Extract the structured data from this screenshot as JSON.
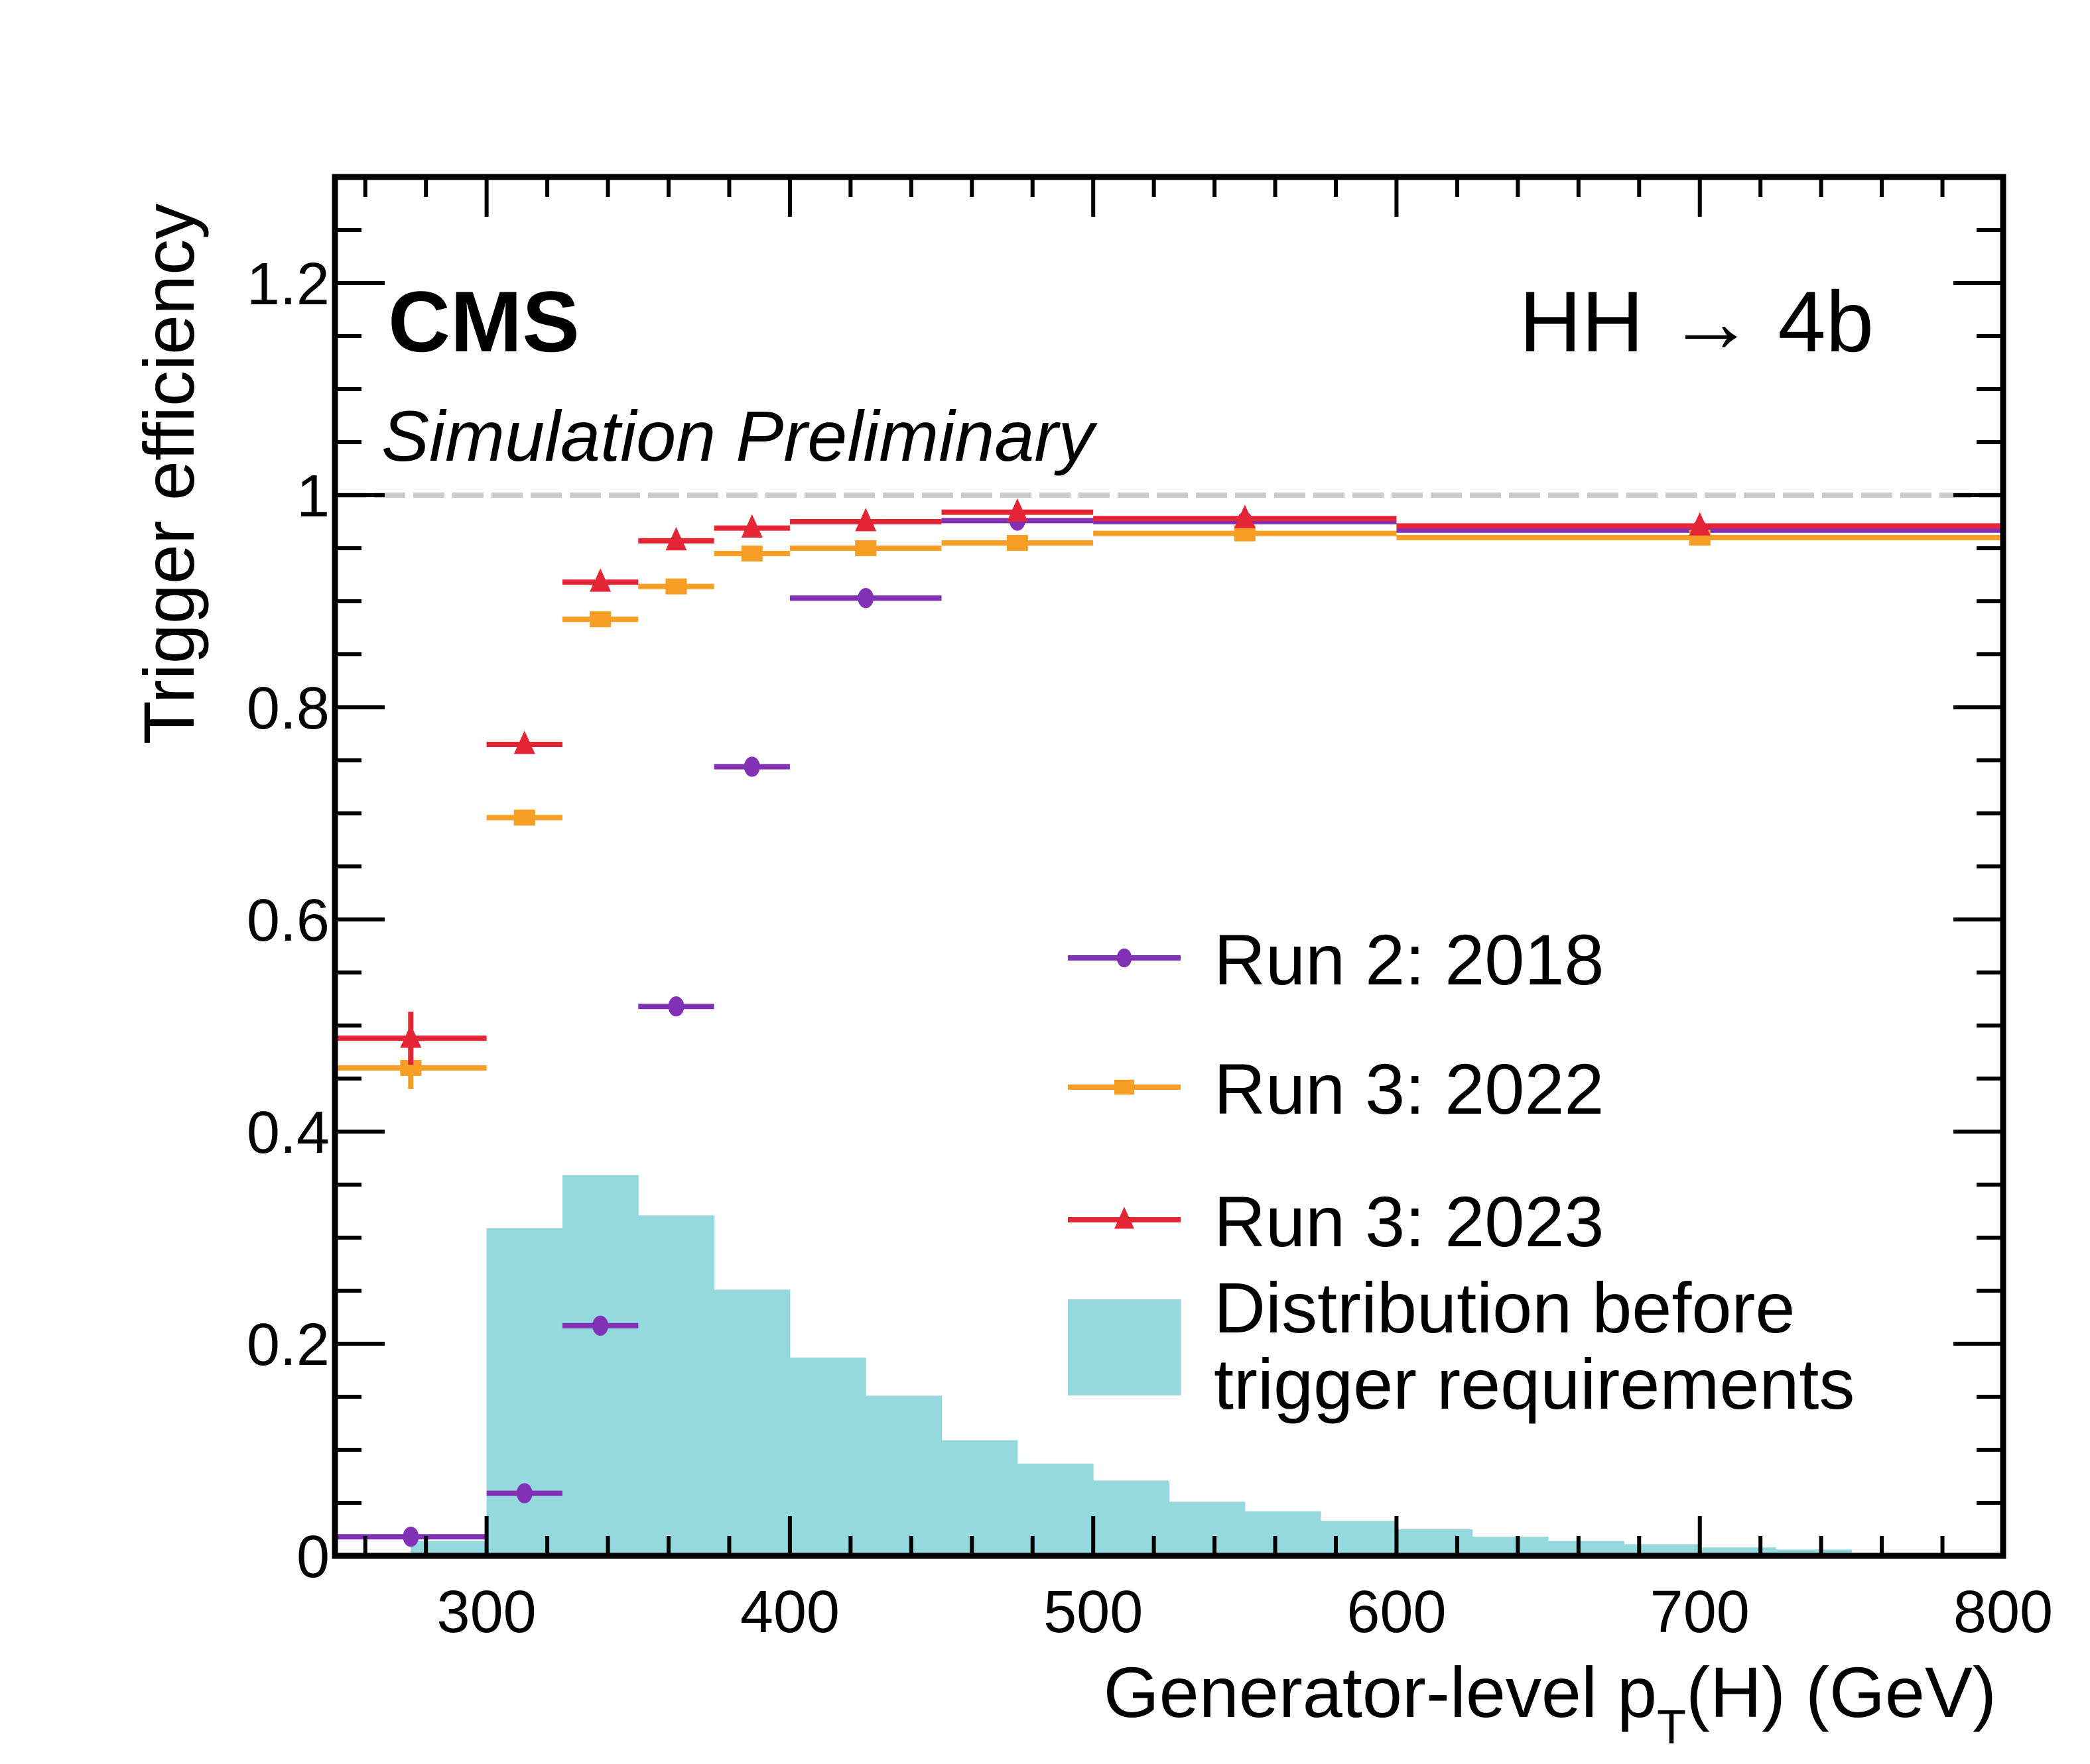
{
  "chart_data": {
    "type": "scatter",
    "title": "",
    "experiment_label": "CMS",
    "experiment_sublabel": "Simulation Preliminary",
    "process_label": "HH → 4b",
    "xlabel": "Generator-level p_T(H) (GeV)",
    "xlabel_parts": {
      "pre": "Generator-level p",
      "sub": "T",
      "post": "(H) (GeV)"
    },
    "ylabel": "Trigger efficiency",
    "xlim": [
      250,
      800
    ],
    "ylim": [
      0,
      1.3
    ],
    "x_ticks": [
      300,
      400,
      500,
      600,
      700,
      800
    ],
    "x_tick_labels": [
      "300",
      "400",
      "500",
      "600",
      "700",
      "800"
    ],
    "y_ticks": [
      0,
      0.2,
      0.4,
      0.6,
      0.8,
      1,
      1.2
    ],
    "y_tick_labels": [
      "0",
      "0.2",
      "0.4",
      "0.6",
      "0.8",
      "1",
      "1.2"
    ],
    "reference_line": {
      "y": 1.0,
      "style": "dashed",
      "color": "#cccccc"
    },
    "grid": false,
    "legend_position": "center-right",
    "series": [
      {
        "name": "Run 2: 2018",
        "marker": "circle",
        "color": "#8230b5",
        "bins": [
          [
            250,
            300
          ],
          [
            300,
            325
          ],
          [
            325,
            350
          ],
          [
            350,
            375
          ],
          [
            375,
            400
          ],
          [
            400,
            450
          ],
          [
            450,
            500
          ],
          [
            500,
            600
          ],
          [
            600,
            800
          ]
        ],
        "x": [
          275,
          312.5,
          337.5,
          362.5,
          387.5,
          425,
          475,
          550,
          700
        ],
        "values": [
          0.018,
          0.059,
          0.217,
          0.518,
          0.744,
          0.903,
          0.976,
          0.975,
          0.967
        ],
        "yerr": [
          0,
          0,
          0,
          0,
          0,
          0,
          0,
          0,
          0
        ]
      },
      {
        "name": "Run 3: 2022",
        "marker": "square",
        "color": "#f79e24",
        "bins": [
          [
            250,
            300
          ],
          [
            300,
            325
          ],
          [
            325,
            350
          ],
          [
            350,
            375
          ],
          [
            375,
            400
          ],
          [
            400,
            450
          ],
          [
            450,
            500
          ],
          [
            500,
            600
          ],
          [
            600,
            800
          ]
        ],
        "x": [
          275,
          312.5,
          337.5,
          362.5,
          387.5,
          425,
          475,
          550,
          700
        ],
        "values": [
          0.46,
          0.696,
          0.883,
          0.914,
          0.945,
          0.95,
          0.955,
          0.964,
          0.96
        ],
        "yerr": [
          0.02,
          0,
          0,
          0,
          0,
          0,
          0,
          0,
          0
        ]
      },
      {
        "name": "Run 3: 2023",
        "marker": "triangle",
        "color": "#e42536",
        "bins": [
          [
            250,
            300
          ],
          [
            300,
            325
          ],
          [
            325,
            350
          ],
          [
            350,
            375
          ],
          [
            375,
            400
          ],
          [
            400,
            450
          ],
          [
            450,
            500
          ],
          [
            500,
            600
          ],
          [
            600,
            800
          ]
        ],
        "x": [
          275,
          312.5,
          337.5,
          362.5,
          387.5,
          425,
          475,
          550,
          700
        ],
        "values": [
          0.488,
          0.765,
          0.918,
          0.957,
          0.969,
          0.975,
          0.984,
          0.978,
          0.971
        ],
        "yerr": [
          0.025,
          0,
          0,
          0,
          0,
          0,
          0,
          0,
          0
        ]
      }
    ],
    "histogram": {
      "name": "Distribution before trigger requirements",
      "name_lines": [
        "Distribution before",
        "trigger requirements"
      ],
      "color": "#94d9de",
      "bin_edges": [
        275,
        300,
        325,
        350,
        375,
        400,
        425,
        450,
        475,
        500,
        525,
        550,
        575,
        600,
        625,
        650,
        675,
        700,
        725,
        750
      ],
      "values": [
        0.014,
        0.309,
        0.359,
        0.321,
        0.251,
        0.187,
        0.151,
        0.109,
        0.087,
        0.071,
        0.051,
        0.042,
        0.033,
        0.025,
        0.018,
        0.014,
        0.011,
        0.008,
        0.006
      ]
    }
  }
}
